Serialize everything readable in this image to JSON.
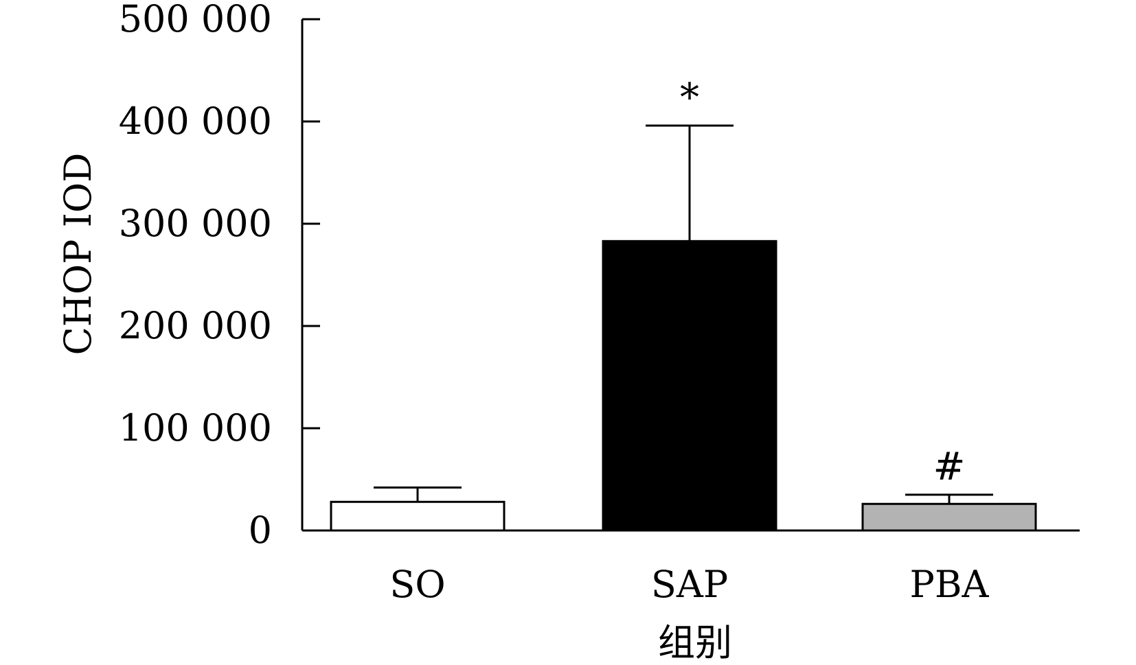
{
  "chart_data": {
    "type": "bar",
    "categories": [
      "SO",
      "SAP",
      "PBA"
    ],
    "values": [
      28000,
      283000,
      26000
    ],
    "error_upper": [
      42000,
      396000,
      35000
    ],
    "annotations": [
      "",
      "*",
      "#"
    ],
    "bar_colors": [
      "#ffffff",
      "#000000",
      "#b3b3b3"
    ],
    "xlabel": "组别",
    "ylabel": "CHOP IOD",
    "ylim": [
      0,
      500000
    ],
    "yticks": [
      0,
      100000,
      200000,
      300000,
      400000,
      500000
    ],
    "ytick_labels": [
      "0",
      "100 000",
      "200 000",
      "300 000",
      "400 000",
      "500 000"
    ],
    "grid": false
  }
}
